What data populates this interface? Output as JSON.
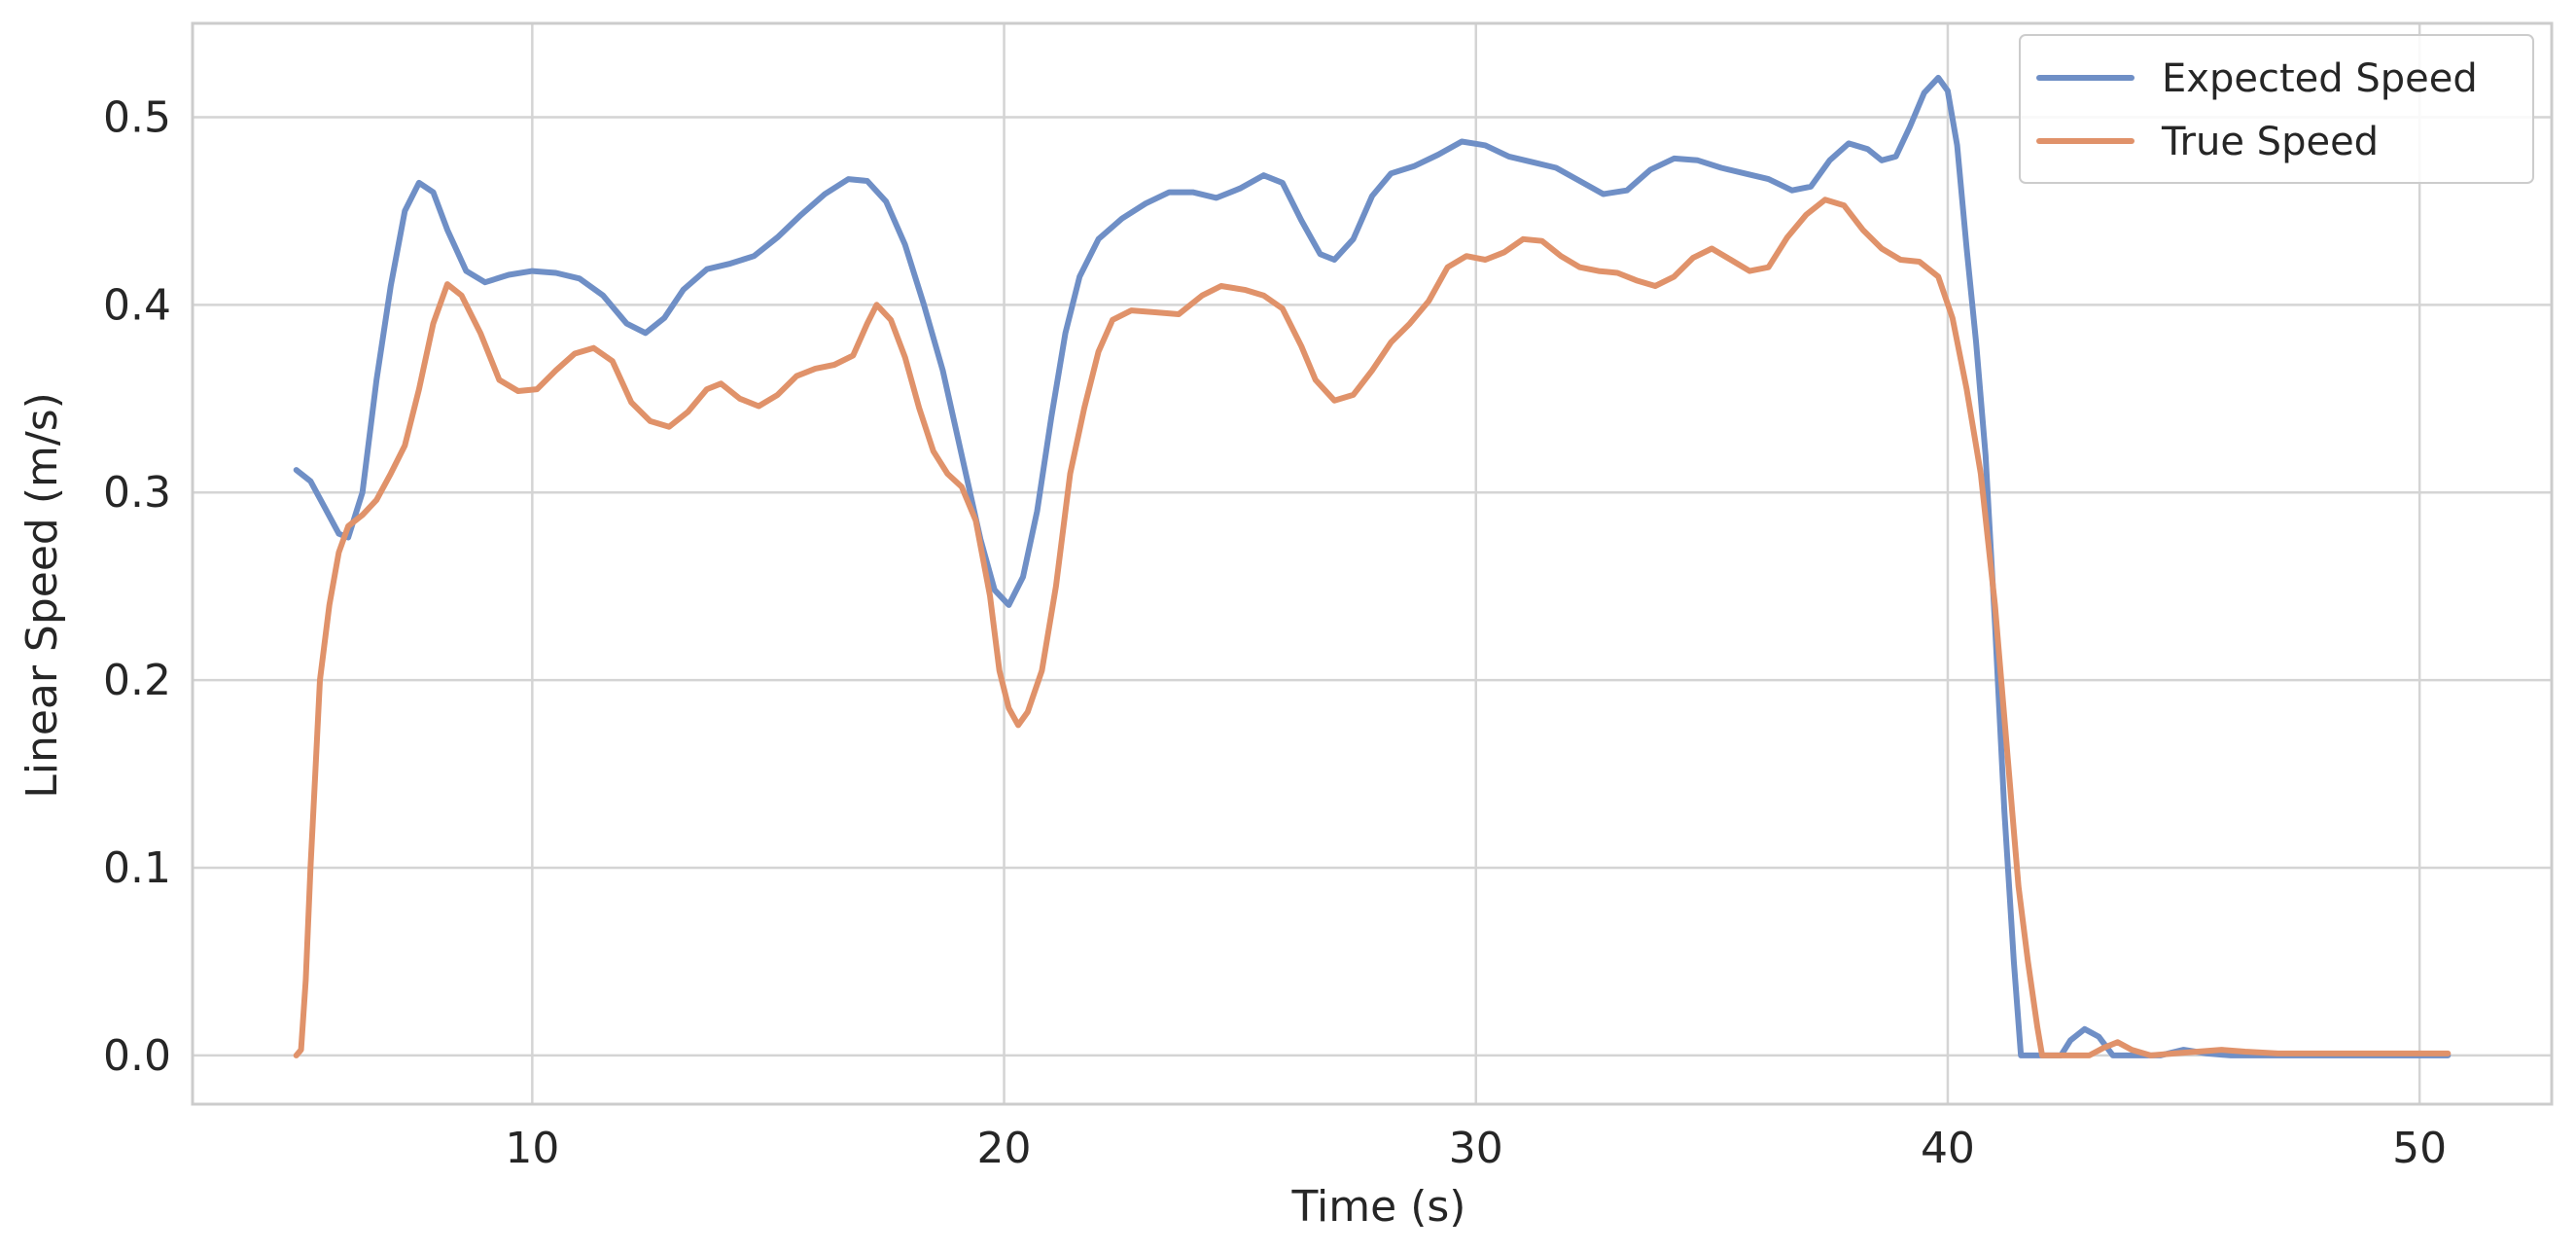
{
  "chart_data": {
    "type": "line",
    "title": "",
    "xlabel": "Time (s)",
    "ylabel": "Linear Speed (m/s)",
    "xlim": [
      2.8,
      52.8
    ],
    "ylim": [
      -0.026,
      0.55
    ],
    "xticks": [
      10,
      20,
      30,
      40,
      50
    ],
    "yticks": [
      0.0,
      0.1,
      0.2,
      0.3,
      0.4,
      0.5
    ],
    "xtick_labels": [
      "10",
      "20",
      "30",
      "40",
      "50"
    ],
    "ytick_labels": [
      "0.0",
      "0.1",
      "0.2",
      "0.3",
      "0.4",
      "0.5"
    ],
    "grid": true,
    "legend_position": "top-right",
    "series": [
      {
        "name": "Expected Speed",
        "color": "#6f8fc6",
        "points": [
          [
            5.0,
            0.312
          ],
          [
            5.3,
            0.306
          ],
          [
            5.6,
            0.292
          ],
          [
            5.9,
            0.278
          ],
          [
            6.1,
            0.276
          ],
          [
            6.4,
            0.3
          ],
          [
            6.7,
            0.36
          ],
          [
            7.0,
            0.41
          ],
          [
            7.3,
            0.45
          ],
          [
            7.6,
            0.465
          ],
          [
            7.9,
            0.46
          ],
          [
            8.2,
            0.44
          ],
          [
            8.6,
            0.418
          ],
          [
            9.0,
            0.412
          ],
          [
            9.5,
            0.416
          ],
          [
            10.0,
            0.418
          ],
          [
            10.5,
            0.417
          ],
          [
            11.0,
            0.414
          ],
          [
            11.5,
            0.405
          ],
          [
            12.0,
            0.39
          ],
          [
            12.4,
            0.385
          ],
          [
            12.8,
            0.393
          ],
          [
            13.2,
            0.408
          ],
          [
            13.7,
            0.419
          ],
          [
            14.2,
            0.422
          ],
          [
            14.7,
            0.426
          ],
          [
            15.2,
            0.436
          ],
          [
            15.7,
            0.448
          ],
          [
            16.2,
            0.459
          ],
          [
            16.7,
            0.467
          ],
          [
            17.1,
            0.466
          ],
          [
            17.5,
            0.455
          ],
          [
            17.9,
            0.432
          ],
          [
            18.3,
            0.4
          ],
          [
            18.7,
            0.365
          ],
          [
            19.1,
            0.32
          ],
          [
            19.5,
            0.275
          ],
          [
            19.8,
            0.248
          ],
          [
            20.1,
            0.24
          ],
          [
            20.4,
            0.255
          ],
          [
            20.7,
            0.29
          ],
          [
            21.0,
            0.34
          ],
          [
            21.3,
            0.385
          ],
          [
            21.6,
            0.415
          ],
          [
            22.0,
            0.435
          ],
          [
            22.5,
            0.446
          ],
          [
            23.0,
            0.454
          ],
          [
            23.5,
            0.46
          ],
          [
            24.0,
            0.46
          ],
          [
            24.5,
            0.457
          ],
          [
            25.0,
            0.462
          ],
          [
            25.5,
            0.469
          ],
          [
            25.9,
            0.465
          ],
          [
            26.3,
            0.445
          ],
          [
            26.7,
            0.427
          ],
          [
            27.0,
            0.424
          ],
          [
            27.4,
            0.435
          ],
          [
            27.8,
            0.458
          ],
          [
            28.2,
            0.47
          ],
          [
            28.7,
            0.474
          ],
          [
            29.2,
            0.48
          ],
          [
            29.7,
            0.487
          ],
          [
            30.2,
            0.485
          ],
          [
            30.7,
            0.479
          ],
          [
            31.2,
            0.476
          ],
          [
            31.7,
            0.473
          ],
          [
            32.2,
            0.466
          ],
          [
            32.7,
            0.459
          ],
          [
            33.2,
            0.461
          ],
          [
            33.7,
            0.472
          ],
          [
            34.2,
            0.478
          ],
          [
            34.7,
            0.477
          ],
          [
            35.2,
            0.473
          ],
          [
            35.7,
            0.47
          ],
          [
            36.2,
            0.467
          ],
          [
            36.7,
            0.461
          ],
          [
            37.1,
            0.463
          ],
          [
            37.5,
            0.477
          ],
          [
            37.9,
            0.486
          ],
          [
            38.3,
            0.483
          ],
          [
            38.6,
            0.477
          ],
          [
            38.9,
            0.479
          ],
          [
            39.2,
            0.495
          ],
          [
            39.5,
            0.513
          ],
          [
            39.8,
            0.521
          ],
          [
            40.0,
            0.514
          ],
          [
            40.2,
            0.485
          ],
          [
            40.4,
            0.43
          ],
          [
            40.6,
            0.38
          ],
          [
            40.8,
            0.32
          ],
          [
            41.0,
            0.23
          ],
          [
            41.2,
            0.13
          ],
          [
            41.4,
            0.05
          ],
          [
            41.55,
            0.0
          ],
          [
            42.0,
            0.0
          ],
          [
            42.4,
            0.0
          ],
          [
            42.6,
            0.008
          ],
          [
            42.9,
            0.014
          ],
          [
            43.2,
            0.01
          ],
          [
            43.5,
            0.0
          ],
          [
            44.0,
            0.0
          ],
          [
            44.5,
            0.0
          ],
          [
            45.0,
            0.003
          ],
          [
            45.5,
            0.001
          ],
          [
            46.0,
            0.0
          ],
          [
            47.0,
            0.0
          ],
          [
            48.0,
            0.0
          ],
          [
            49.0,
            0.0
          ],
          [
            50.0,
            0.0
          ],
          [
            50.6,
            0.0
          ]
        ]
      },
      {
        "name": "True Speed",
        "color": "#e0926a",
        "points": [
          [
            5.0,
            0.0
          ],
          [
            5.1,
            0.003
          ],
          [
            5.2,
            0.04
          ],
          [
            5.3,
            0.1
          ],
          [
            5.4,
            0.15
          ],
          [
            5.5,
            0.2
          ],
          [
            5.7,
            0.24
          ],
          [
            5.9,
            0.268
          ],
          [
            6.1,
            0.282
          ],
          [
            6.4,
            0.288
          ],
          [
            6.7,
            0.296
          ],
          [
            7.0,
            0.31
          ],
          [
            7.3,
            0.325
          ],
          [
            7.6,
            0.355
          ],
          [
            7.9,
            0.39
          ],
          [
            8.2,
            0.411
          ],
          [
            8.5,
            0.405
          ],
          [
            8.9,
            0.385
          ],
          [
            9.3,
            0.36
          ],
          [
            9.7,
            0.354
          ],
          [
            10.1,
            0.355
          ],
          [
            10.5,
            0.365
          ],
          [
            10.9,
            0.374
          ],
          [
            11.3,
            0.377
          ],
          [
            11.7,
            0.37
          ],
          [
            12.1,
            0.348
          ],
          [
            12.5,
            0.338
          ],
          [
            12.9,
            0.335
          ],
          [
            13.3,
            0.343
          ],
          [
            13.7,
            0.355
          ],
          [
            14.0,
            0.358
          ],
          [
            14.4,
            0.35
          ],
          [
            14.8,
            0.346
          ],
          [
            15.2,
            0.352
          ],
          [
            15.6,
            0.362
          ],
          [
            16.0,
            0.366
          ],
          [
            16.4,
            0.368
          ],
          [
            16.8,
            0.373
          ],
          [
            17.1,
            0.39
          ],
          [
            17.3,
            0.4
          ],
          [
            17.6,
            0.392
          ],
          [
            17.9,
            0.372
          ],
          [
            18.2,
            0.345
          ],
          [
            18.5,
            0.322
          ],
          [
            18.8,
            0.31
          ],
          [
            19.1,
            0.303
          ],
          [
            19.4,
            0.285
          ],
          [
            19.7,
            0.245
          ],
          [
            19.9,
            0.205
          ],
          [
            20.1,
            0.185
          ],
          [
            20.3,
            0.176
          ],
          [
            20.5,
            0.183
          ],
          [
            20.8,
            0.205
          ],
          [
            21.1,
            0.25
          ],
          [
            21.4,
            0.31
          ],
          [
            21.7,
            0.345
          ],
          [
            22.0,
            0.375
          ],
          [
            22.3,
            0.392
          ],
          [
            22.7,
            0.397
          ],
          [
            23.2,
            0.396
          ],
          [
            23.7,
            0.395
          ],
          [
            24.2,
            0.405
          ],
          [
            24.6,
            0.41
          ],
          [
            25.1,
            0.408
          ],
          [
            25.5,
            0.405
          ],
          [
            25.9,
            0.398
          ],
          [
            26.3,
            0.378
          ],
          [
            26.6,
            0.36
          ],
          [
            27.0,
            0.349
          ],
          [
            27.4,
            0.352
          ],
          [
            27.8,
            0.365
          ],
          [
            28.2,
            0.38
          ],
          [
            28.6,
            0.39
          ],
          [
            29.0,
            0.402
          ],
          [
            29.4,
            0.42
          ],
          [
            29.8,
            0.426
          ],
          [
            30.2,
            0.424
          ],
          [
            30.6,
            0.428
          ],
          [
            31.0,
            0.435
          ],
          [
            31.4,
            0.434
          ],
          [
            31.8,
            0.426
          ],
          [
            32.2,
            0.42
          ],
          [
            32.6,
            0.418
          ],
          [
            33.0,
            0.417
          ],
          [
            33.4,
            0.413
          ],
          [
            33.8,
            0.41
          ],
          [
            34.2,
            0.415
          ],
          [
            34.6,
            0.425
          ],
          [
            35.0,
            0.43
          ],
          [
            35.4,
            0.424
          ],
          [
            35.8,
            0.418
          ],
          [
            36.2,
            0.42
          ],
          [
            36.6,
            0.436
          ],
          [
            37.0,
            0.448
          ],
          [
            37.4,
            0.456
          ],
          [
            37.8,
            0.453
          ],
          [
            38.2,
            0.44
          ],
          [
            38.6,
            0.43
          ],
          [
            39.0,
            0.424
          ],
          [
            39.4,
            0.423
          ],
          [
            39.8,
            0.415
          ],
          [
            40.1,
            0.393
          ],
          [
            40.4,
            0.355
          ],
          [
            40.7,
            0.31
          ],
          [
            41.0,
            0.24
          ],
          [
            41.3,
            0.15
          ],
          [
            41.5,
            0.09
          ],
          [
            41.7,
            0.05
          ],
          [
            41.9,
            0.015
          ],
          [
            42.0,
            0.0
          ],
          [
            42.5,
            0.0
          ],
          [
            43.0,
            0.0
          ],
          [
            43.3,
            0.004
          ],
          [
            43.6,
            0.007
          ],
          [
            43.9,
            0.003
          ],
          [
            44.3,
            0.0
          ],
          [
            44.8,
            0.001
          ],
          [
            45.3,
            0.002
          ],
          [
            45.8,
            0.003
          ],
          [
            46.3,
            0.002
          ],
          [
            47.0,
            0.001
          ],
          [
            48.0,
            0.001
          ],
          [
            49.0,
            0.001
          ],
          [
            50.0,
            0.001
          ],
          [
            50.6,
            0.001
          ]
        ]
      }
    ]
  }
}
